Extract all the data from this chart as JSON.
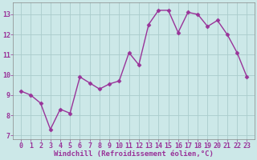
{
  "x": [
    0,
    1,
    2,
    3,
    4,
    5,
    6,
    7,
    8,
    9,
    10,
    11,
    12,
    13,
    14,
    15,
    16,
    17,
    18,
    19,
    20,
    21,
    22,
    23
  ],
  "y": [
    9.2,
    9.0,
    8.6,
    7.3,
    8.3,
    8.1,
    9.9,
    9.6,
    9.3,
    9.55,
    9.7,
    11.1,
    10.5,
    12.5,
    13.2,
    13.2,
    12.1,
    13.1,
    13.0,
    12.4,
    12.7,
    12.0,
    11.1,
    9.9
  ],
  "line_color": "#993399",
  "marker": "D",
  "markersize": 2.5,
  "linewidth": 1.0,
  "background_color": "#cce8e8",
  "grid_color": "#aacccc",
  "xlabel": "Windchill (Refroidissement éolien,°C)",
  "xlabel_color": "#993399",
  "xlabel_fontsize": 6.5,
  "tick_label_color": "#993399",
  "tick_fontsize": 6.0,
  "ylim": [
    6.8,
    13.6
  ],
  "yticks": [
    7,
    8,
    9,
    10,
    11,
    12,
    13
  ],
  "xticks": [
    0,
    1,
    2,
    3,
    4,
    5,
    6,
    7,
    8,
    9,
    10,
    11,
    12,
    13,
    14,
    15,
    16,
    17,
    18,
    19,
    20,
    21,
    22,
    23
  ]
}
